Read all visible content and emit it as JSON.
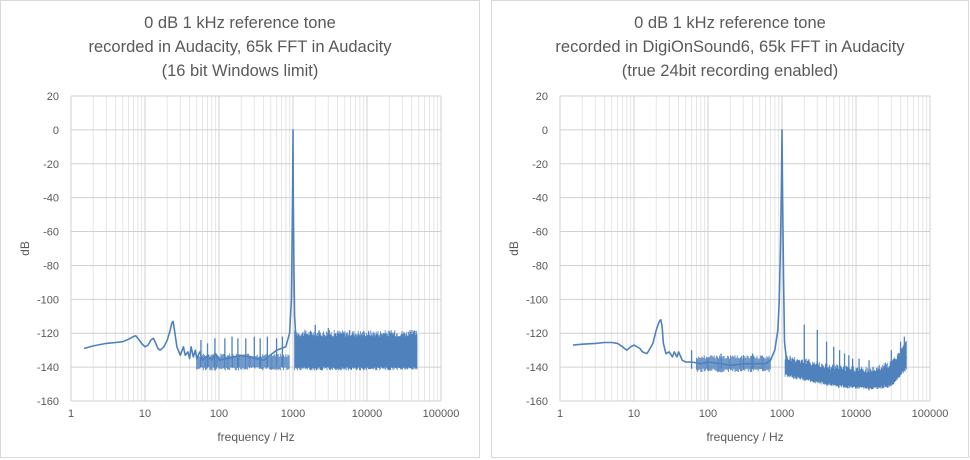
{
  "chart_data": [
    {
      "type": "line",
      "title": "0 dB 1 kHz reference tone",
      "subtitle_lines": [
        "recorded in Audacity, 65k FFT in Audacity",
        "(16 bit Windows limit)"
      ],
      "xlabel": "frequency / Hz",
      "ylabel": "dB",
      "xscale": "log",
      "xlim": [
        1,
        100000
      ],
      "ylim": [
        -160,
        20
      ],
      "xticks": [
        1,
        10,
        100,
        1000,
        10000,
        100000
      ],
      "xtick_labels": [
        "1",
        "10",
        "100",
        "1000",
        "10000",
        "100000"
      ],
      "yticks": [
        20,
        0,
        -20,
        -40,
        -60,
        -80,
        -100,
        -120,
        -140,
        -160
      ],
      "ytick_labels": [
        "20",
        "0",
        "-20",
        "-40",
        "-60",
        "-80",
        "-100",
        "-120",
        "-140",
        "-160"
      ],
      "grid": true,
      "legend": "none",
      "series_color": "#4f81bd",
      "series": [
        {
          "x": [
            1.5,
            2,
            3,
            4,
            5,
            6,
            7,
            7.5,
            8,
            9,
            10,
            11,
            12,
            13,
            14,
            15,
            16,
            18,
            20,
            22,
            23,
            24,
            25,
            27,
            30,
            33,
            35,
            38,
            40,
            42,
            45,
            48,
            50,
            55,
            60,
            70,
            80,
            90,
            100,
            200,
            400,
            600,
            800,
            900,
            950,
            970,
            990,
            1000,
            1010,
            1030,
            1050,
            1100,
            1200,
            1500,
            2000,
            3000,
            5000,
            10000,
            20000,
            30000,
            48000
          ],
          "y": [
            -129,
            -127.5,
            -126,
            -125.5,
            -125,
            -123.5,
            -122,
            -121.5,
            -123,
            -126,
            -128,
            -127,
            -124,
            -123,
            -126,
            -129,
            -130,
            -128,
            -124,
            -118,
            -114,
            -113,
            -118,
            -128,
            -133,
            -128,
            -133,
            -131,
            -135,
            -128,
            -134,
            -130,
            -135,
            -131,
            -136,
            -133,
            -136,
            -132,
            -136,
            -133,
            -136,
            -130,
            -128,
            -120,
            -100,
            -70,
            -30,
            0,
            -40,
            -80,
            -110,
            -125,
            -128,
            -130,
            -130,
            -130,
            -130,
            -130,
            -130,
            -130,
            -130
          ],
          "peaks": [
            {
              "f": 57,
              "db": -124
            },
            {
              "f": 70,
              "db": -126
            },
            {
              "f": 88,
              "db": -123
            },
            {
              "f": 120,
              "db": -123
            },
            {
              "f": 150,
              "db": -122
            },
            {
              "f": 180,
              "db": -123
            },
            {
              "f": 230,
              "db": -123
            },
            {
              "f": 300,
              "db": -122
            },
            {
              "f": 360,
              "db": -123
            },
            {
              "f": 450,
              "db": -122
            },
            {
              "f": 600,
              "db": -123
            },
            {
              "f": 720,
              "db": -122
            },
            {
              "f": 2000,
              "db": -115
            },
            {
              "f": 3000,
              "db": -117
            }
          ],
          "noise_band": [
            {
              "f": 1050,
              "top": -122,
              "bottom": -140
            },
            {
              "f": 48000,
              "top": -122,
              "bottom": -140
            }
          ],
          "baseline_band": {
            "from": 50,
            "to": 900,
            "top": -134,
            "bottom": -140
          }
        }
      ]
    },
    {
      "type": "line",
      "title": "0 dB 1 kHz reference tone",
      "subtitle_lines": [
        "recorded in DigiOnSound6, 65k FFT in Audacity",
        "(true 24bit recording enabled)"
      ],
      "xlabel": "frequency / Hz",
      "ylabel": "dB",
      "xscale": "log",
      "xlim": [
        1,
        100000
      ],
      "ylim": [
        -160,
        20
      ],
      "xticks": [
        1,
        10,
        100,
        1000,
        10000,
        100000
      ],
      "xtick_labels": [
        "1",
        "10",
        "100",
        "1000",
        "10000",
        "100000"
      ],
      "yticks": [
        20,
        0,
        -20,
        -40,
        -60,
        -80,
        -100,
        -120,
        -140,
        -160
      ],
      "ytick_labels": [
        "20",
        "0",
        "-20",
        "-40",
        "-60",
        "-80",
        "-100",
        "-120",
        "-140",
        "-160"
      ],
      "grid": true,
      "legend": "none",
      "series_color": "#4f81bd",
      "series": [
        {
          "x": [
            1.5,
            2,
            3,
            4,
            5,
            6,
            7,
            8,
            9,
            10,
            11,
            12,
            13,
            15,
            16,
            18,
            20,
            22,
            23,
            24,
            25,
            27,
            30,
            33,
            35,
            38,
            40,
            45,
            50,
            60,
            80,
            100,
            150,
            200,
            300,
            400,
            500,
            600,
            700,
            800,
            880,
            920,
            950,
            980,
            1000,
            1020,
            1050,
            1080,
            1150,
            1300,
            1600,
            2000,
            3000,
            5000,
            8000,
            10000,
            15000,
            20000,
            25000,
            30000,
            35000,
            40000,
            45000,
            48000
          ],
          "y": [
            -127,
            -126.5,
            -126,
            -125.5,
            -125.5,
            -126,
            -128,
            -130,
            -128,
            -127,
            -128,
            -129,
            -131,
            -132,
            -130,
            -126,
            -118,
            -113,
            -112,
            -116,
            -126,
            -132,
            -131,
            -134,
            -131,
            -134,
            -131,
            -136,
            -137,
            -137,
            -138,
            -137,
            -138,
            -139,
            -138,
            -138,
            -138,
            -138,
            -136,
            -130,
            -118,
            -100,
            -70,
            -35,
            0,
            -40,
            -90,
            -125,
            -136,
            -140,
            -144,
            -145,
            -147,
            -148,
            -149,
            -150,
            -151,
            -150,
            -148,
            -145,
            -142,
            -138,
            -136,
            -134
          ],
          "peaks": [
            {
              "f": 60,
              "db": -130
            },
            {
              "f": 150,
              "db": -132
            },
            {
              "f": 300,
              "db": -133
            },
            {
              "f": 400,
              "db": -132
            },
            {
              "f": 2000,
              "db": -115
            },
            {
              "f": 3000,
              "db": -118
            },
            {
              "f": 4000,
              "db": -125
            },
            {
              "f": 5000,
              "db": -128
            },
            {
              "f": 6000,
              "db": -130
            },
            {
              "f": 7000,
              "db": -132
            },
            {
              "f": 8000,
              "db": -133
            },
            {
              "f": 9000,
              "db": -135
            },
            {
              "f": 11000,
              "db": -135
            },
            {
              "f": 15000,
              "db": -136
            },
            {
              "f": 30000,
              "db": -130
            },
            {
              "f": 40000,
              "db": -125
            },
            {
              "f": 45000,
              "db": -122
            }
          ],
          "noise_band": [
            {
              "f": 1100,
              "top": -136,
              "bottom": -144
            },
            {
              "f": 5000,
              "top": -142,
              "bottom": -150
            },
            {
              "f": 15000,
              "top": -144,
              "bottom": -152
            },
            {
              "f": 30000,
              "top": -140,
              "bottom": -150
            },
            {
              "f": 48000,
              "top": -128,
              "bottom": -140
            }
          ],
          "baseline_band": {
            "from": 70,
            "to": 700,
            "top": -135,
            "bottom": -141
          }
        }
      ]
    }
  ]
}
